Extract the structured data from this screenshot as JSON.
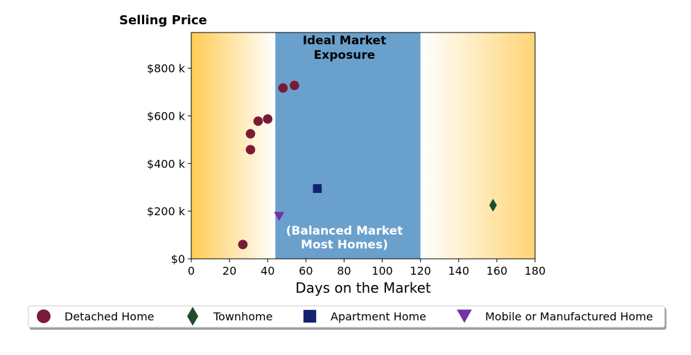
{
  "chart_data": {
    "type": "scatter",
    "title": "Selling Price",
    "xlabel": "Days on the Market",
    "ylabel": "",
    "xlim": [
      0,
      180
    ],
    "ylim": [
      0,
      950000
    ],
    "xticks": [
      0,
      20,
      40,
      60,
      80,
      100,
      120,
      140,
      160,
      180
    ],
    "yticks": [
      0,
      200000,
      400000,
      600000,
      800000
    ],
    "ytick_labels": [
      "$0",
      "$200 k",
      "$400 k",
      "$600 k",
      "$800 k"
    ],
    "grid": false,
    "background_color": "#ffcc55",
    "band": {
      "x_range": [
        44,
        120
      ],
      "color": "#6aa0cc",
      "label_top": [
        "Ideal Market",
        "Exposure"
      ],
      "label_bottom": [
        "(Balanced Market",
        "Most Homes)"
      ]
    },
    "series": [
      {
        "name": "Detached Home",
        "marker": "circle",
        "color": "#7b1a36",
        "points": [
          {
            "x": 27,
            "y": 60000
          },
          {
            "x": 31,
            "y": 458000
          },
          {
            "x": 31,
            "y": 525000
          },
          {
            "x": 35,
            "y": 578000
          },
          {
            "x": 40,
            "y": 587000
          },
          {
            "x": 48,
            "y": 717000
          },
          {
            "x": 54,
            "y": 728000
          }
        ]
      },
      {
        "name": "Townhome",
        "marker": "diamond",
        "color": "#1e4d2b",
        "points": [
          {
            "x": 158,
            "y": 225000
          }
        ]
      },
      {
        "name": "Apartment Home",
        "marker": "square",
        "color": "#13216f",
        "points": [
          {
            "x": 66,
            "y": 295000
          }
        ]
      },
      {
        "name": "Mobile or Manufactured Home",
        "marker": "triangle-down",
        "color": "#7035a3",
        "points": [
          {
            "x": 46,
            "y": 178000
          }
        ]
      }
    ],
    "legend_placement": "bottom"
  }
}
